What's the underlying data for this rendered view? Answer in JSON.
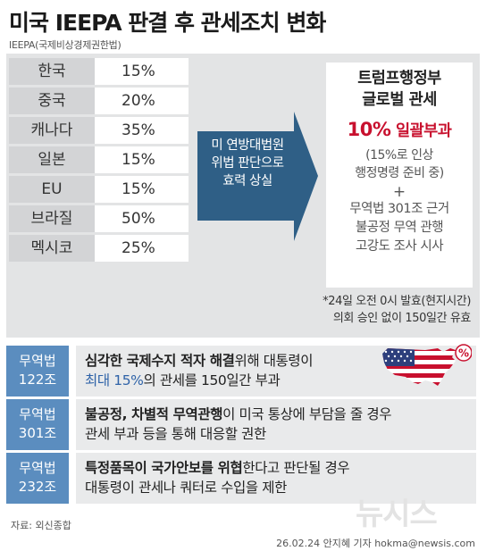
{
  "header": {
    "title": "미국 IEEPA 판결 후 관세조치 변화",
    "subtitle": "IEEPA(국제비상경제권한법)"
  },
  "countries": [
    {
      "name": "한국",
      "rate": "15%"
    },
    {
      "name": "중국",
      "rate": "20%"
    },
    {
      "name": "캐나다",
      "rate": "35%"
    },
    {
      "name": "일본",
      "rate": "15%"
    },
    {
      "name": "EU",
      "rate": "15%"
    },
    {
      "name": "브라질",
      "rate": "50%"
    },
    {
      "name": "멕시코",
      "rate": "25%"
    }
  ],
  "arrow": {
    "line1": "미 연방대법원",
    "line2": "위법 판단으로",
    "line3": "효력 상실"
  },
  "result": {
    "head1": "트럼프행정부",
    "head2": "글로벌 관세",
    "rate_pct": "10%",
    "rate_word": "일괄부과",
    "note1": "(15%로 인상",
    "note2": "행정명령 준비 중)",
    "plus": "+",
    "trade1": "무역법 301조 근거",
    "trade2": "불공정 무역 관행",
    "trade3": "고강도 조사 시사"
  },
  "footnote": {
    "line1": "*24일 오전 0시 발효(현지시간)",
    "line2": "의회 승인 없이 150일간 유효"
  },
  "laws": [
    {
      "tag1": "무역법",
      "tag2": "122조",
      "l1_bold": "심각한 국제수지 적자 해결",
      "l1_rest": "위해 대통령이",
      "l2_blue": "최대 15%",
      "l2_rest": "의 관세를 150일간 부과"
    },
    {
      "tag1": "무역법",
      "tag2": "301조",
      "l1_bold": "불공정, 차별적 무역관행",
      "l1_rest": "이 미국 통상에 부담을 줄 경우",
      "l2": "관세 부과 등을 통해 대응할 권한"
    },
    {
      "tag1": "무역법",
      "tag2": "232조",
      "l1_bold": "특정품목이 국가안보를 위협",
      "l1_rest": "한다고 판단될 경우",
      "l2": "대통령이 관세나 쿼터로 수입을 제한"
    }
  ],
  "badge": "%",
  "footer": {
    "source": "자료: 외신종합",
    "logo": "뉴시스",
    "credit": "26.02.24 안지혜 기자 hokma@newsis.com"
  },
  "colors": {
    "arrow": "#2f5f86",
    "tag": "#5b8dbf",
    "accent_red": "#c8102e",
    "accent_blue": "#2f63a8"
  }
}
